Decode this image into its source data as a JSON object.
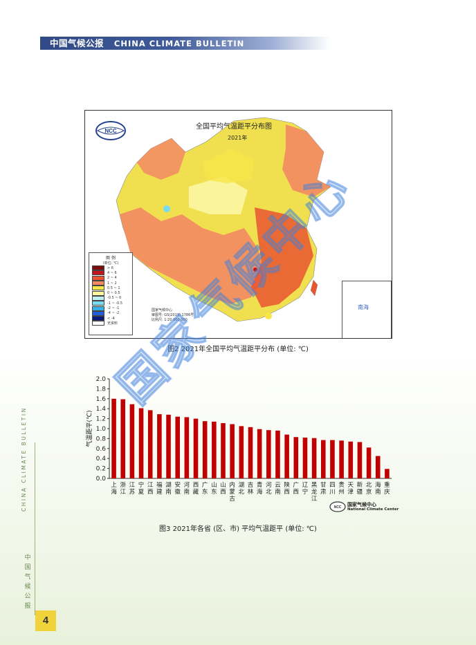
{
  "header": {
    "title_zh": "中国气候公报",
    "title_en": "CHINA CLIMATE BULLETIN"
  },
  "sidebar": {
    "text_en": "CHINA CLIMATE BULLETIN",
    "text_zh": "中国气候公报"
  },
  "page_number": "4",
  "watermark": "国家气候中心",
  "figure2": {
    "map_title": "全国平均气温距平分布图",
    "map_year": "2021年",
    "caption": "图2  2021年全国平均气温距平分布 (单位: ℃)",
    "legend": {
      "title": "图  例",
      "unit": "(单位: ℃)",
      "items": [
        {
          "label": "> 6",
          "color": "#7a0f0f"
        },
        {
          "label": "4 ~ 6",
          "color": "#c2161a"
        },
        {
          "label": "2 ~ 4",
          "color": "#e8552f"
        },
        {
          "label": "1 ~ 2",
          "color": "#f28a62"
        },
        {
          "label": "0.5 ~ 1",
          "color": "#f6e64a"
        },
        {
          "label": "0 ~ 0.5",
          "color": "#fbf7a2"
        },
        {
          "label": "-0.5 ~ 0",
          "color": "#bff0f2"
        },
        {
          "label": "-1 ~ -0.5",
          "color": "#78dcef"
        },
        {
          "label": "-2 ~ -1",
          "color": "#3bb0e6"
        },
        {
          "label": "-4 ~ -2",
          "color": "#1f5ed7"
        },
        {
          "label": "< -4",
          "color": "#0a1a7a"
        },
        {
          "label": "无资料",
          "color": "#ffffff"
        }
      ]
    },
    "info": [
      "国家气候中心",
      "审图号: GS(2019) 1786号",
      "比例尺: 1:20 000 000"
    ],
    "inset_label": "南海"
  },
  "figure3": {
    "caption": "图3  2021年各省 (区、市) 平均气温距平 (单位: ℃)",
    "brand_zh": "国家气候中心",
    "brand_en": "National Climate Center"
  },
  "chart_data": {
    "type": "bar",
    "ylabel": "气温距平(℃)",
    "ylim": [
      0,
      2.0
    ],
    "yticks": [
      "0.0",
      "0.2",
      "0.4",
      "0.6",
      "0.8",
      "1.0",
      "1.2",
      "1.4",
      "1.6",
      "1.8",
      "2.0"
    ],
    "bar_color": "#c00000",
    "categories": [
      "上海",
      "浙江",
      "江苏",
      "宁夏",
      "江西",
      "福建",
      "湖南",
      "安徽",
      "河南",
      "西藏",
      "广东",
      "山东",
      "山西",
      "内蒙古",
      "湖北",
      "吉林",
      "青海",
      "河北",
      "云南",
      "陕西",
      "广西",
      "辽宁",
      "黑龙江",
      "甘肃",
      "四川",
      "贵州",
      "天津",
      "新疆",
      "北京",
      "海南",
      "重庆"
    ],
    "values": [
      1.6,
      1.59,
      1.49,
      1.41,
      1.37,
      1.29,
      1.28,
      1.24,
      1.23,
      1.2,
      1.15,
      1.14,
      1.11,
      1.09,
      1.05,
      1.03,
      0.99,
      0.97,
      0.96,
      0.88,
      0.83,
      0.82,
      0.81,
      0.77,
      0.77,
      0.76,
      0.74,
      0.73,
      0.62,
      0.45,
      0.19
    ]
  }
}
